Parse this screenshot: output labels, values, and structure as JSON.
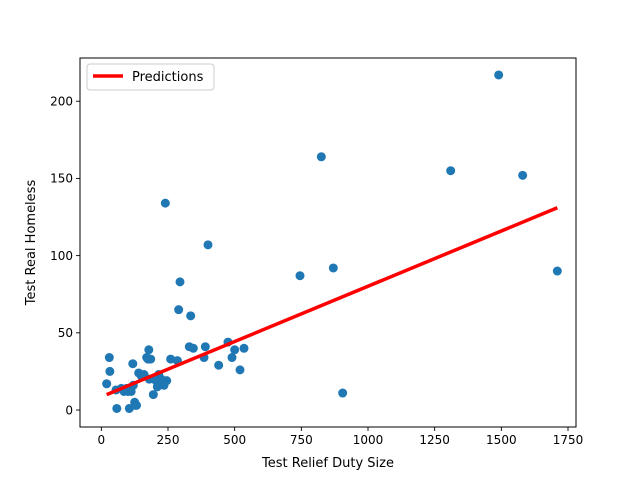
{
  "chart_data": {
    "type": "scatter",
    "xlabel": "Test Relief Duty Size",
    "ylabel": "Test Real Homeless",
    "xlim": [
      -80,
      1780
    ],
    "ylim": [
      -11,
      228
    ],
    "xticks": [
      0,
      250,
      500,
      750,
      1000,
      1250,
      1500,
      1750
    ],
    "yticks": [
      0,
      50,
      100,
      150,
      200
    ],
    "grid": false,
    "legend": {
      "placement": "upper-left",
      "entries": [
        "Predictions"
      ]
    },
    "colors": {
      "points": "#1f77b4",
      "line": "#ff0000"
    },
    "series": [
      {
        "kind": "scatter",
        "points": [
          [
            20,
            17
          ],
          [
            30,
            34
          ],
          [
            32,
            25
          ],
          [
            55,
            13
          ],
          [
            58,
            1
          ],
          [
            75,
            14
          ],
          [
            85,
            12
          ],
          [
            95,
            14
          ],
          [
            100,
            12
          ],
          [
            105,
            1
          ],
          [
            112,
            12
          ],
          [
            118,
            30
          ],
          [
            120,
            16
          ],
          [
            125,
            5
          ],
          [
            128,
            3
          ],
          [
            132,
            3
          ],
          [
            140,
            24
          ],
          [
            150,
            22
          ],
          [
            160,
            23
          ],
          [
            170,
            34
          ],
          [
            175,
            33
          ],
          [
            178,
            39
          ],
          [
            180,
            20
          ],
          [
            185,
            33
          ],
          [
            195,
            10
          ],
          [
            200,
            20
          ],
          [
            205,
            19
          ],
          [
            210,
            15
          ],
          [
            215,
            23
          ],
          [
            225,
            20
          ],
          [
            235,
            16
          ],
          [
            240,
            134
          ],
          [
            245,
            19
          ],
          [
            260,
            33
          ],
          [
            285,
            32
          ],
          [
            290,
            65
          ],
          [
            295,
            83
          ],
          [
            330,
            41
          ],
          [
            335,
            61
          ],
          [
            345,
            40
          ],
          [
            385,
            34
          ],
          [
            390,
            41
          ],
          [
            400,
            107
          ],
          [
            440,
            29
          ],
          [
            475,
            44
          ],
          [
            490,
            34
          ],
          [
            500,
            39
          ],
          [
            520,
            26
          ],
          [
            535,
            40
          ],
          [
            745,
            87
          ],
          [
            825,
            164
          ],
          [
            870,
            92
          ],
          [
            905,
            11
          ],
          [
            1310,
            155
          ],
          [
            1490,
            217
          ],
          [
            1580,
            152
          ],
          [
            1710,
            90
          ]
        ]
      },
      {
        "kind": "line",
        "name": "Predictions",
        "points": [
          [
            20,
            10
          ],
          [
            1710,
            131
          ]
        ]
      }
    ]
  }
}
